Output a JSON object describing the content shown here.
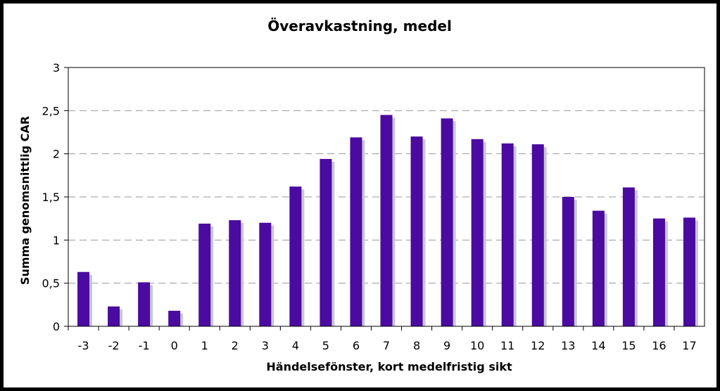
{
  "chart_data": {
    "type": "bar",
    "title": "Överavkastning, medel",
    "xlabel": "Händelsefönster, kort medelfristig sikt",
    "ylabel": "Summa genomsnittlig CAR",
    "ylim": [
      0,
      3
    ],
    "yticks": [
      "0",
      "0,5",
      "1",
      "1,5",
      "2",
      "2,5",
      "3"
    ],
    "grid": true,
    "categories": [
      "-3",
      "-2",
      "-1",
      "0",
      "1",
      "2",
      "3",
      "4",
      "5",
      "6",
      "7",
      "8",
      "9",
      "10",
      "11",
      "12",
      "13",
      "14",
      "15",
      "16",
      "17"
    ],
    "values": [
      0.63,
      0.23,
      0.51,
      0.18,
      1.19,
      1.23,
      1.2,
      1.62,
      1.94,
      2.19,
      2.45,
      2.2,
      2.41,
      2.17,
      2.12,
      2.11,
      1.5,
      1.34,
      1.61,
      1.25,
      1.26
    ],
    "bar_color": "#4b0aa0",
    "shadow_color": "#c8c8d2"
  }
}
